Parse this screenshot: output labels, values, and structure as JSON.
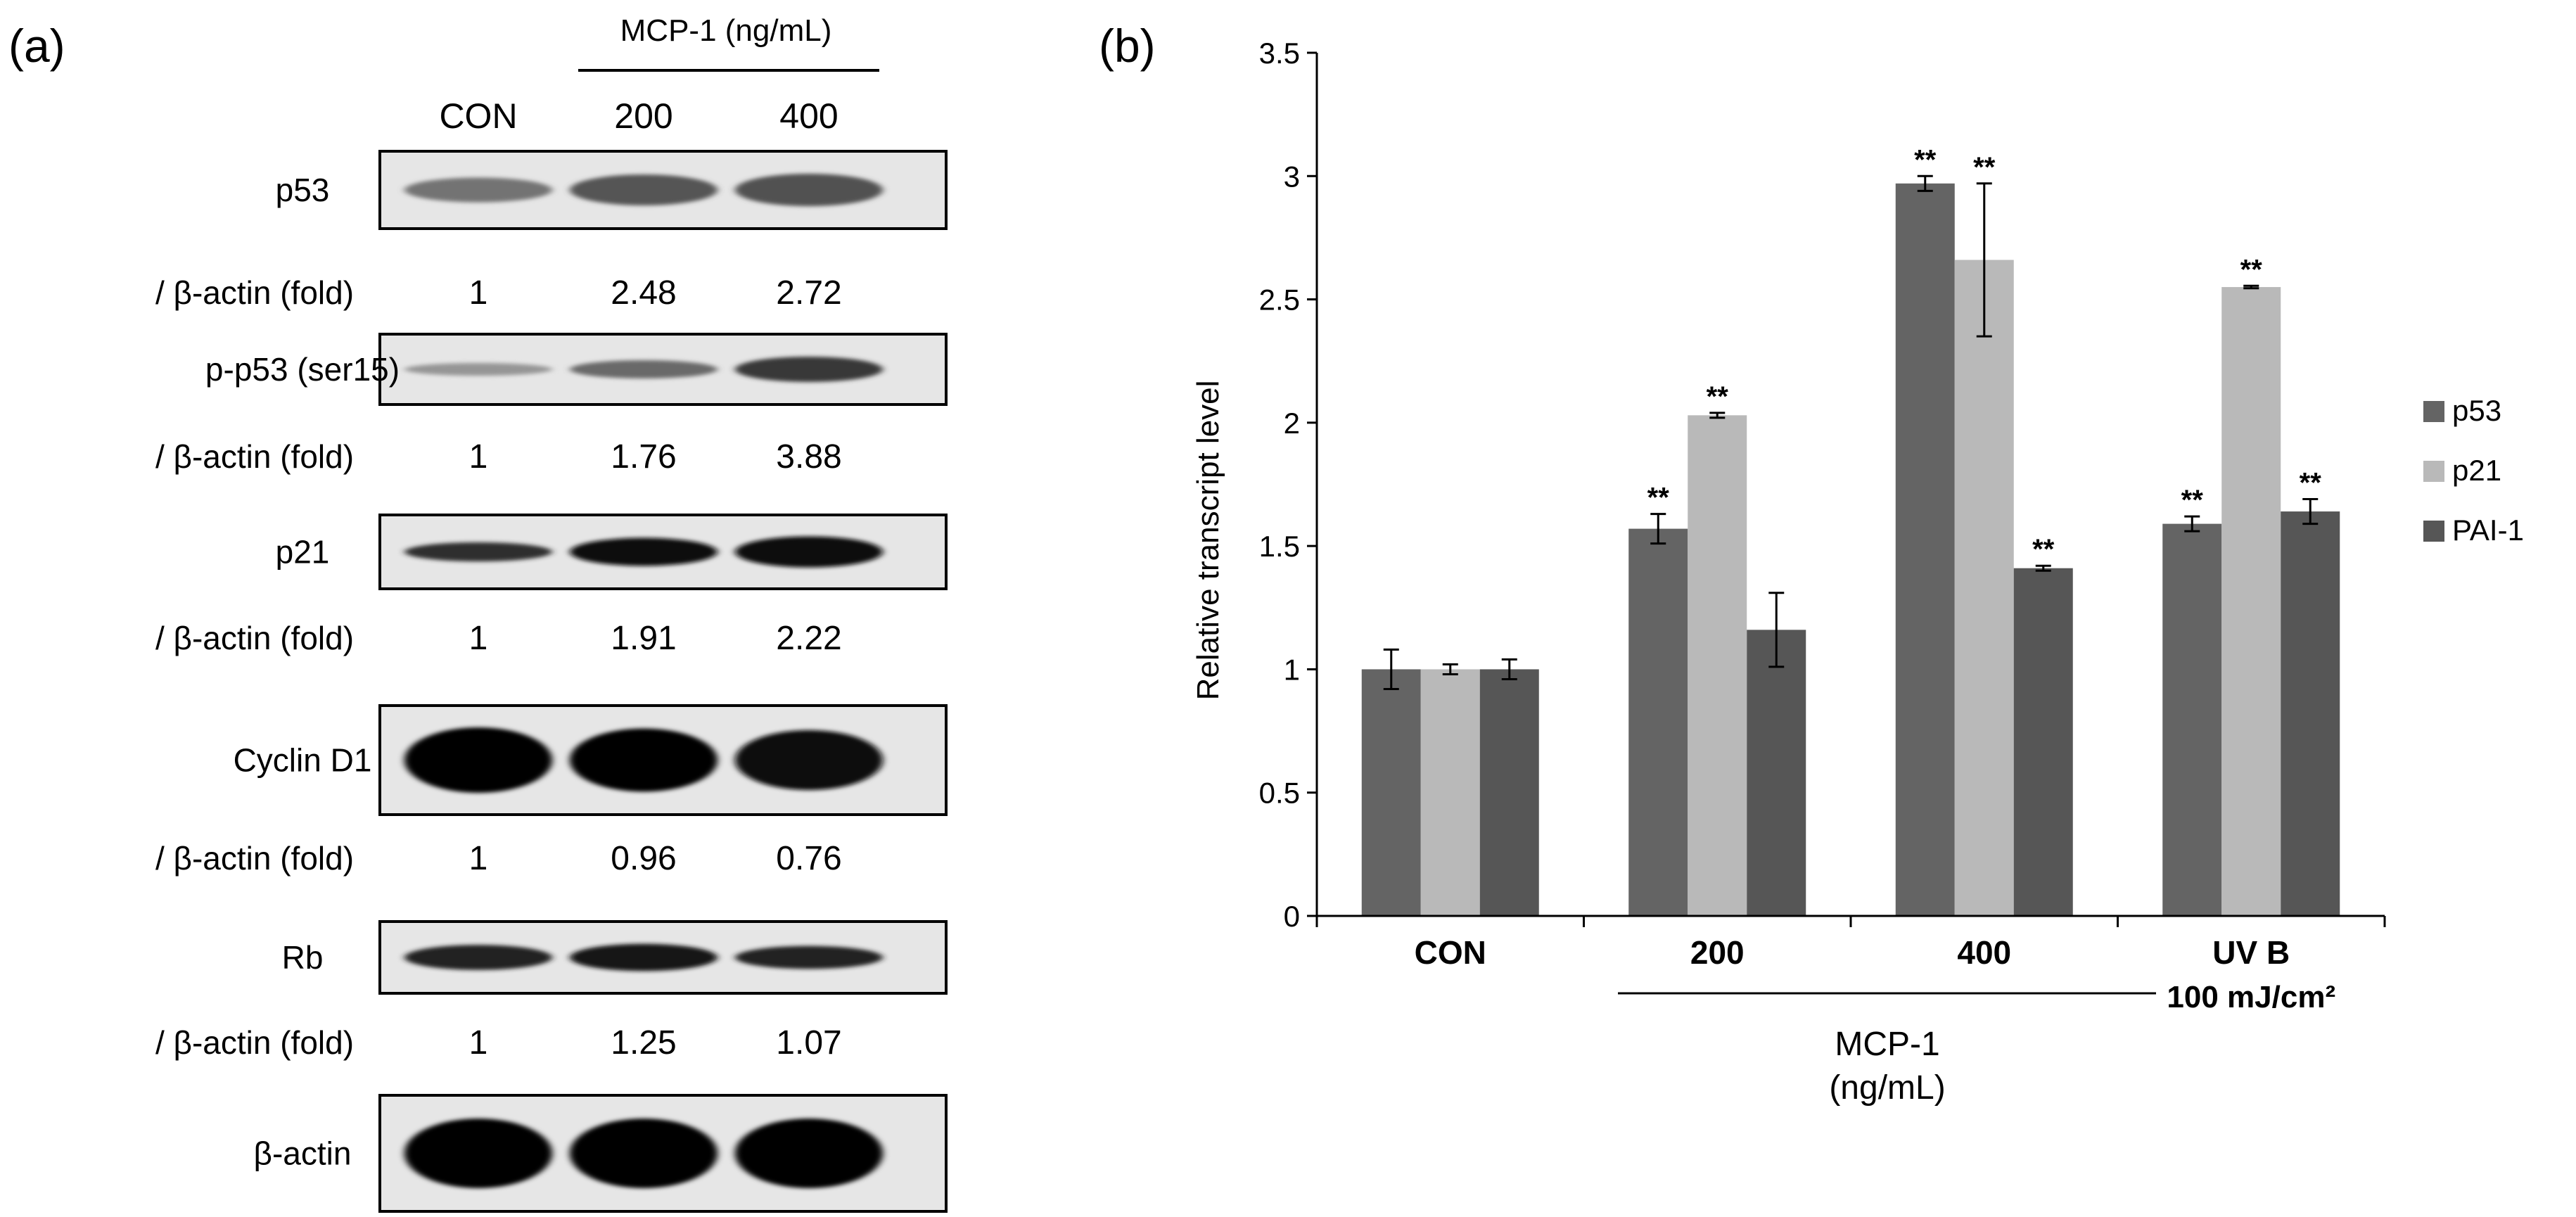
{
  "panel_a": {
    "label": "(a)",
    "treatment_header": "MCP-1 (ng/mL)",
    "columns": [
      "CON",
      "200",
      "400"
    ],
    "blots": [
      {
        "name": "p53",
        "ratio_label": "/ β-actin (fold)",
        "ratios": [
          "1",
          "2.48",
          "2.72"
        ],
        "band_intensity": [
          0.45,
          0.6,
          0.62
        ],
        "band_thickness": [
          0.32,
          0.4,
          0.42
        ]
      },
      {
        "name": "p-p53 (ser15)",
        "ratio_label": "/ β-actin (fold)",
        "ratios": [
          "1",
          "1.76",
          "3.88"
        ],
        "band_intensity": [
          0.28,
          0.5,
          0.75
        ],
        "band_thickness": [
          0.18,
          0.26,
          0.36
        ]
      },
      {
        "name": "p21",
        "ratio_label": "/ β-actin (fold)",
        "ratios": [
          "1",
          "1.91",
          "2.22"
        ],
        "band_intensity": [
          0.8,
          0.95,
          0.97
        ],
        "band_thickness": [
          0.26,
          0.38,
          0.42
        ]
      },
      {
        "name": "Cyclin D1",
        "ratio_label": "/ β-actin (fold)",
        "ratios": [
          "1",
          "0.96",
          "0.76"
        ],
        "band_intensity": [
          1.0,
          1.0,
          0.97
        ],
        "band_thickness": [
          0.6,
          0.58,
          0.55
        ]
      },
      {
        "name": "Rb",
        "ratio_label": "/ β-actin (fold)",
        "ratios": [
          "1",
          "1.25",
          "1.07"
        ],
        "band_intensity": [
          0.85,
          0.9,
          0.85
        ],
        "band_thickness": [
          0.35,
          0.38,
          0.32
        ]
      },
      {
        "name": "β-actin",
        "ratio_label": "",
        "ratios": [],
        "band_intensity": [
          1.0,
          1.0,
          1.0
        ],
        "band_thickness": [
          0.6,
          0.6,
          0.6
        ]
      }
    ]
  },
  "chart_data": {
    "type": "bar",
    "panel_label": "(b)",
    "title": "",
    "xlabel": "",
    "ylabel": "Relative transcript level",
    "ylim": [
      0,
      3.5
    ],
    "yticks": [
      "0",
      "0.5",
      "1",
      "1.5",
      "2",
      "2.5",
      "3",
      "3.5"
    ],
    "ytick_values": [
      0,
      0.5,
      1,
      1.5,
      2,
      2.5,
      3,
      3.5
    ],
    "categories": [
      "CON",
      "200",
      "400",
      "UV B"
    ],
    "category_sublabels": [
      "",
      "",
      "",
      "100 mJ/cm²"
    ],
    "group_caption": [
      "MCP-1",
      "(ng/mL)"
    ],
    "series": [
      {
        "name": "p53",
        "color": "#646464",
        "values": [
          1.0,
          1.57,
          2.97,
          1.59
        ],
        "errors": [
          0.08,
          0.06,
          0.03,
          0.03
        ],
        "significance": [
          "",
          "**",
          "**",
          "**"
        ]
      },
      {
        "name": "p21",
        "color": "#b9b9b9",
        "values": [
          1.0,
          2.03,
          2.66,
          2.55
        ],
        "errors": [
          0.02,
          0.01,
          0.31,
          0.005
        ],
        "significance": [
          "",
          "**",
          "**",
          "**"
        ]
      },
      {
        "name": "PAI-1",
        "color": "#565656",
        "values": [
          1.0,
          1.16,
          1.41,
          1.64
        ],
        "errors": [
          0.04,
          0.15,
          0.01,
          0.05
        ],
        "significance": [
          "",
          "",
          "**",
          "**"
        ]
      }
    ],
    "legend_position": "right"
  }
}
